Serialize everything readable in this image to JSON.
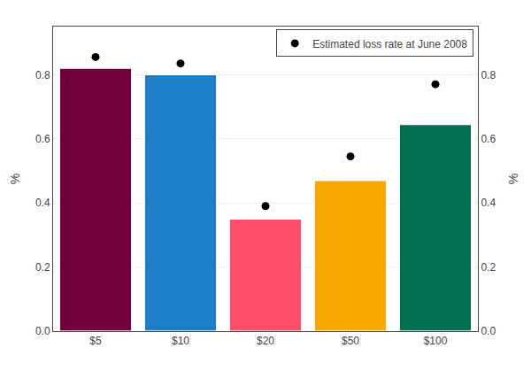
{
  "chart_data": {
    "type": "bar",
    "categories": [
      "$5",
      "$10",
      "$20",
      "$50",
      "$100"
    ],
    "series": [
      {
        "type": "bar",
        "colors": [
          "#72003C",
          "#1E7EC8",
          "#FF4D6A",
          "#F5A800",
          "#007050"
        ],
        "values": [
          0.82,
          0.8,
          0.35,
          0.47,
          0.645
        ]
      },
      {
        "type": "scatter",
        "name": "Estimated loss rate at June 2008",
        "color": "#000000",
        "marker": "circle",
        "values": [
          0.855,
          0.835,
          0.39,
          0.545,
          0.77
        ]
      }
    ],
    "ylabel": "%",
    "y2label": "%",
    "ylim": [
      0.0,
      0.95
    ],
    "yticks": [
      {
        "value": 0.0,
        "label": "0.0"
      },
      0.2,
      0.4,
      0.6,
      0.8
    ],
    "y2lim": [
      0.0,
      0.95
    ],
    "y2ticks": [
      {
        "value": 0.0,
        "label": "0.0"
      },
      0.2,
      0.4,
      0.6,
      0.8
    ],
    "grid": true,
    "legend": "upper right"
  }
}
